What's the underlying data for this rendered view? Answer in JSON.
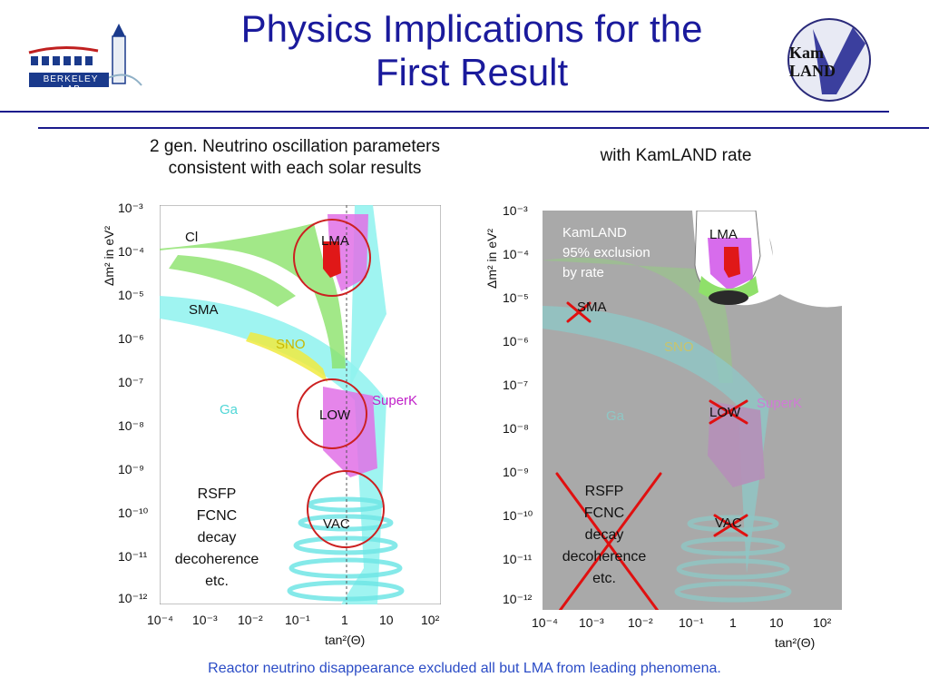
{
  "slide": {
    "title_line1": "Physics Implications for the",
    "title_line2": "First Result",
    "caption": "Reactor neutrino disappearance excluded all but LMA from leading phenomena."
  },
  "logos": {
    "left": {
      "icon": "berkeley-lab-logo",
      "text": "BERKELEY LAB"
    },
    "right": {
      "icon": "kamland-logo",
      "text_line1": "Kam",
      "text_line2": "LAND"
    }
  },
  "left_plot": {
    "heading_line1": "2 gen. Neutrino oscillation parameters",
    "heading_line2": "consistent with each solar results",
    "ylabel": "Δm² in eV²",
    "xlabel": "tan²(Θ)",
    "y_ticks": [
      "10⁻³",
      "10⁻⁴",
      "10⁻⁵",
      "10⁻⁶",
      "10⁻⁷",
      "10⁻⁸",
      "10⁻⁹",
      "10⁻¹⁰",
      "10⁻¹¹",
      "10⁻¹²"
    ],
    "x_ticks": [
      "10⁻⁴",
      "10⁻³",
      "10⁻²",
      "10⁻¹",
      "1",
      "10",
      "10²"
    ],
    "region_labels": {
      "cl": "Cl",
      "lma": "LMA",
      "sma": "SMA",
      "sno": "SNO",
      "superk": "SuperK",
      "ga": "Ga",
      "low": "LOW",
      "vac": "VAC"
    },
    "other_text": [
      "RSFP",
      "FCNC",
      "decay",
      "decoherence",
      "etc."
    ]
  },
  "right_plot": {
    "heading": "with KamLAND rate",
    "ylabel": "Δm² in eV²",
    "xlabel": "tan²(Θ)",
    "y_ticks": [
      "10⁻³",
      "10⁻⁴",
      "10⁻⁵",
      "10⁻⁶",
      "10⁻⁷",
      "10⁻⁸",
      "10⁻⁹",
      "10⁻¹⁰",
      "10⁻¹¹",
      "10⁻¹²"
    ],
    "x_ticks": [
      "10⁻⁴",
      "10⁻³",
      "10⁻²",
      "10⁻¹",
      "1",
      "10",
      "10²"
    ],
    "exclusion_line1": "KamLAND",
    "exclusion_line2": "95% exclusion",
    "exclusion_line3": "by rate",
    "region_labels": {
      "lma": "LMA",
      "sma": "SMA",
      "sno": "SNO",
      "superk": "SuperK",
      "ga": "Ga",
      "low": "LOW",
      "vac": "VAC"
    },
    "other_text": [
      "RSFP",
      "FCNC",
      "decay",
      "decoherence",
      "etc."
    ]
  },
  "colors": {
    "title": "#1a1a9c",
    "caption": "#2b4cc6",
    "cross": "#e01010",
    "circle": "#cc2020"
  }
}
